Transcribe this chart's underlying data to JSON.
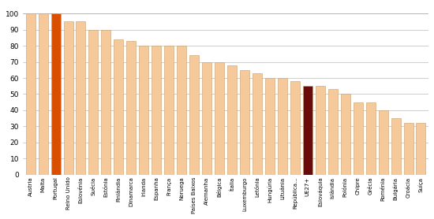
{
  "categories": [
    "Austria",
    "Malta",
    "Portugal",
    "Reino Unido",
    "Eslovénia",
    "Suécia",
    "Estónia",
    "Finlândia",
    "Dinamarca",
    "Irlanda",
    "Espanha",
    "França",
    "Noruega",
    "Países Baixos",
    "Alemanha",
    "Bélgica",
    "Ítalia",
    "Luxemburgo",
    "Letónia",
    "Hungúria",
    "Lituânia",
    "República...",
    "UE27+",
    "Eslováquia",
    "Islândia",
    "Polónia",
    "Chipre",
    "Grécia",
    "Roménia",
    "Bulgária",
    "Croácia",
    "Suíça"
  ],
  "values": [
    100,
    100,
    100,
    95,
    95,
    90,
    90,
    84,
    83,
    80,
    80,
    80,
    80,
    74,
    70,
    70,
    68,
    65,
    63,
    60,
    60,
    58,
    55,
    55,
    53,
    50,
    45,
    45,
    40,
    35,
    32,
    32
  ],
  "bar_colors": [
    "#f5c99a",
    "#f5c99a",
    "#d94f00",
    "#f5c99a",
    "#f5c99a",
    "#f5c99a",
    "#f5c99a",
    "#f5c99a",
    "#f5c99a",
    "#f5c99a",
    "#f5c99a",
    "#f5c99a",
    "#f5c99a",
    "#f5c99a",
    "#f5c99a",
    "#f5c99a",
    "#f5c99a",
    "#f5c99a",
    "#f5c99a",
    "#f5c99a",
    "#f5c99a",
    "#f5c99a",
    "#6b0a0a",
    "#f5c99a",
    "#f5c99a",
    "#f5c99a",
    "#f5c99a",
    "#f5c99a",
    "#f5c99a",
    "#f5c99a",
    "#f5c99a",
    "#f5c99a"
  ],
  "edge_color": "#c8a070",
  "ylim": [
    0,
    105
  ],
  "yticks": [
    0,
    10,
    20,
    30,
    40,
    50,
    60,
    70,
    80,
    90,
    100
  ],
  "grid_color": "#bbbbbb",
  "background_color": "#ffffff"
}
